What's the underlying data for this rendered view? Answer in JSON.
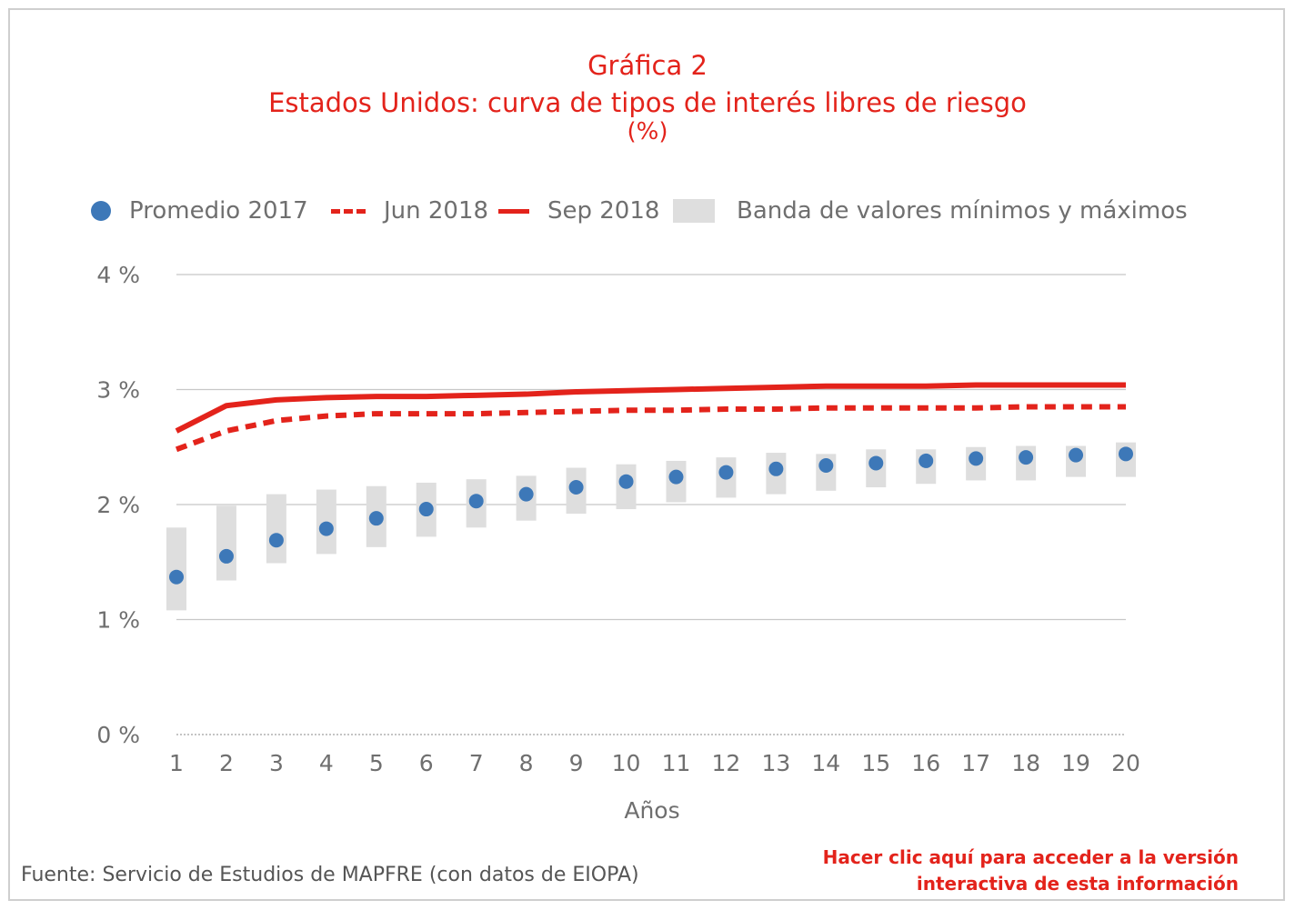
{
  "header": {
    "chart_number": "Gráfica 2",
    "title": "Estados Unidos: curva de tipos de interés libres de riesgo",
    "unit": "(%)"
  },
  "footer": {
    "source": "Fuente: Servicio de Estudios de MAPFRE (con datos de EIOPA)",
    "link_line1": "Hacer clic aquí para acceder a la versión",
    "link_line2": "interactiva de esta información"
  },
  "chart_data": {
    "type": "line",
    "title": "Estados Unidos: curva de tipos de interés libres de riesgo",
    "subtitle": "(%)",
    "xlabel": "Años",
    "ylabel": "",
    "x": [
      1,
      2,
      3,
      4,
      5,
      6,
      7,
      8,
      9,
      10,
      11,
      12,
      13,
      14,
      15,
      16,
      17,
      18,
      19,
      20
    ],
    "ylim": [
      0,
      4
    ],
    "y_ticks": [
      0,
      1,
      2,
      3,
      4
    ],
    "y_tick_labels": [
      "0 %",
      "1 %",
      "2 %",
      "3 %",
      "4 %"
    ],
    "grid": true,
    "legend_position": "top",
    "series": [
      {
        "name": "Promedio 2017",
        "kind": "scatter",
        "color": "#3d78b8",
        "values": [
          1.37,
          1.55,
          1.69,
          1.79,
          1.88,
          1.96,
          2.03,
          2.09,
          2.15,
          2.2,
          2.24,
          2.28,
          2.31,
          2.34,
          2.36,
          2.38,
          2.4,
          2.41,
          2.43,
          2.44
        ]
      },
      {
        "name": "Jun 2018",
        "kind": "dashed-line",
        "color": "#e3231b",
        "values": [
          2.48,
          2.64,
          2.73,
          2.77,
          2.79,
          2.79,
          2.79,
          2.8,
          2.81,
          2.82,
          2.82,
          2.83,
          2.83,
          2.84,
          2.84,
          2.84,
          2.84,
          2.85,
          2.85,
          2.85
        ]
      },
      {
        "name": "Sep 2018",
        "kind": "line",
        "color": "#e3231b",
        "values": [
          2.64,
          2.86,
          2.91,
          2.93,
          2.94,
          2.94,
          2.95,
          2.96,
          2.98,
          2.99,
          3.0,
          3.01,
          3.02,
          3.03,
          3.03,
          3.03,
          3.04,
          3.04,
          3.04,
          3.04
        ]
      },
      {
        "name": "Banda de valores mínimos y máximos",
        "kind": "range-band",
        "color": "#dedede",
        "min": [
          1.08,
          1.34,
          1.49,
          1.57,
          1.63,
          1.72,
          1.8,
          1.86,
          1.92,
          1.96,
          2.02,
          2.06,
          2.09,
          2.12,
          2.15,
          2.18,
          2.21,
          2.21,
          2.24,
          2.24
        ],
        "max": [
          1.8,
          1.99,
          2.09,
          2.13,
          2.16,
          2.19,
          2.22,
          2.25,
          2.32,
          2.35,
          2.38,
          2.41,
          2.45,
          2.44,
          2.48,
          2.48,
          2.5,
          2.51,
          2.51,
          2.54
        ]
      }
    ]
  }
}
